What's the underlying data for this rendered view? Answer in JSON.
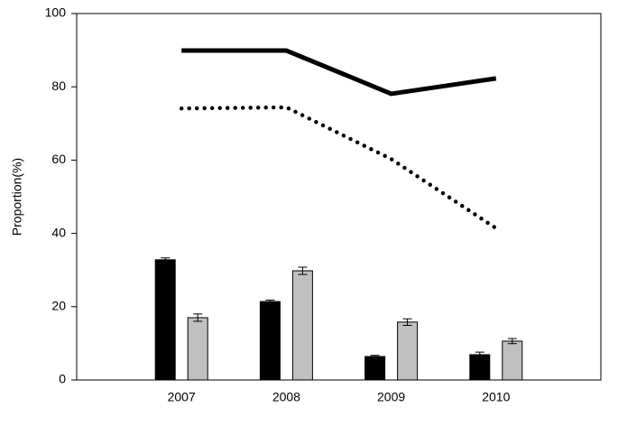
{
  "chart_data": {
    "type": "bar",
    "y_label": "Proportion(%)",
    "x": [
      2007,
      2008,
      2009,
      2010
    ],
    "xlim": [
      2006,
      2011
    ],
    "xticks": [
      2007,
      2008,
      2009,
      2010
    ],
    "ylim": [
      0,
      100
    ],
    "yticks": [
      0,
      20,
      40,
      60,
      80,
      100
    ],
    "series": [
      {
        "type": "bar",
        "color": "#000000",
        "values": [
          32.8,
          21.4,
          6.4,
          6.9
        ],
        "errors": [
          0.5,
          0.4,
          0.3,
          0.7
        ]
      },
      {
        "type": "bar",
        "color": "#c0c0c0",
        "values": [
          17.0,
          29.8,
          15.8,
          10.6
        ],
        "errors": [
          1.0,
          1.0,
          0.9,
          0.7
        ]
      },
      {
        "type": "line",
        "color": "#000000",
        "line_style": "solid",
        "values": [
          89.9,
          89.9,
          78.1,
          82.3
        ]
      },
      {
        "type": "line",
        "color": "#000000",
        "line_style": "dotted",
        "values": [
          74.1,
          74.4,
          60.3,
          41.4
        ]
      }
    ]
  }
}
